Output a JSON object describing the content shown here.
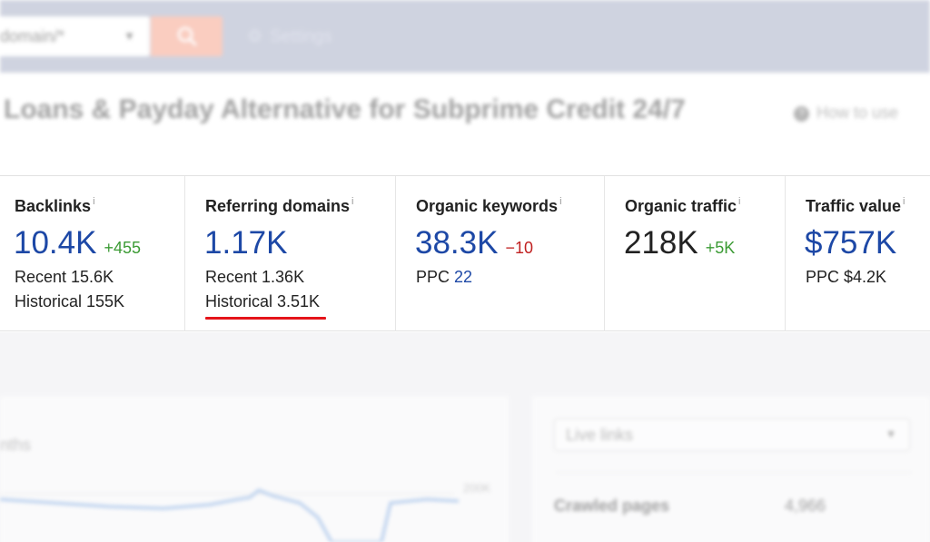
{
  "topbar": {
    "mode_value": "domain/*",
    "mode_caret": "▼",
    "settings_label": "Settings"
  },
  "header": {
    "title": "Loans & Payday Alternative for Subprime Credit 24/7",
    "how_to_use": "How to use",
    "help_icon": "?"
  },
  "metrics": {
    "info_marker": "i",
    "backlinks": {
      "label": "Backlinks",
      "value": "10.4K",
      "delta": "+455",
      "recent": "Recent 15.6K",
      "historical": "Historical 155K"
    },
    "referring_domains": {
      "label": "Referring domains",
      "value": "1.17K",
      "recent": "Recent 1.36K",
      "historical": "Historical 3.51K"
    },
    "organic_keywords": {
      "label": "Organic keywords",
      "value": "38.3K",
      "delta": "−10",
      "ppc_label": "PPC",
      "ppc_value": "22"
    },
    "organic_traffic": {
      "label": "Organic traffic",
      "value": "218K",
      "delta": "+5K"
    },
    "traffic_value": {
      "label": "Traffic value",
      "value": "$757K",
      "ppc": "PPC $4.2K"
    }
  },
  "lower": {
    "months_label": "nths",
    "axis_max": "200K",
    "live_links_select": "Live links",
    "crawled_pages_label": "Crawled pages",
    "crawled_pages_value": "4,966"
  },
  "colors": {
    "link_blue": "#1d48a6",
    "positive_green": "#3c9b35",
    "negative_red": "#c02020",
    "highlight_underline": "#e5141a",
    "search_button": "#f6a58e",
    "topbar": "#a9b0c7"
  }
}
